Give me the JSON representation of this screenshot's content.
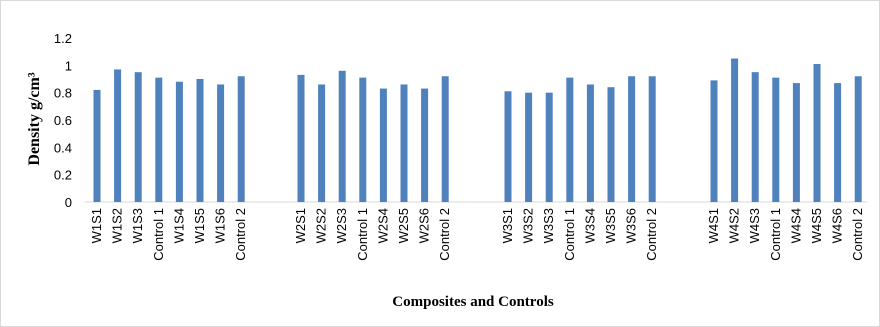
{
  "chart_data": {
    "type": "bar",
    "ylabel": "Density g/cm³",
    "xlabel": "Composites and Controls",
    "ylim": [
      0,
      1.2
    ],
    "yticks": [
      "0",
      "0.2",
      "0.4",
      "0.6",
      "0.8",
      "1",
      "1.2"
    ],
    "grid": false,
    "legend": "none",
    "bar_color": "#4F81BD",
    "groups": [
      {
        "categories": [
          "W1S1",
          "W1S2",
          "W1S3",
          "Control 1",
          "W1S4",
          "W1S5",
          "W1S6",
          "Control 2"
        ],
        "values": [
          0.82,
          0.97,
          0.95,
          0.91,
          0.88,
          0.9,
          0.86,
          0.92
        ]
      },
      {
        "categories": [
          "W2S1",
          "W2S2",
          "W2S3",
          "Control 1",
          "W2S4",
          "W2S5",
          "W2S6",
          "Control 2"
        ],
        "values": [
          0.93,
          0.86,
          0.96,
          0.91,
          0.83,
          0.86,
          0.83,
          0.92
        ]
      },
      {
        "categories": [
          "W3S1",
          "W3S2",
          "W3S3",
          "Control 1",
          "W3S4",
          "W3S5",
          "W3S6",
          "Control 2"
        ],
        "values": [
          0.81,
          0.8,
          0.8,
          0.91,
          0.86,
          0.84,
          0.92,
          0.92
        ]
      },
      {
        "categories": [
          "W4S1",
          "W4S2",
          "W4S3",
          "Control 1",
          "W4S4",
          "W4S5",
          "W4S6",
          "Control 2"
        ],
        "values": [
          0.89,
          1.05,
          0.95,
          0.91,
          0.87,
          1.01,
          0.87,
          0.92
        ]
      }
    ]
  }
}
